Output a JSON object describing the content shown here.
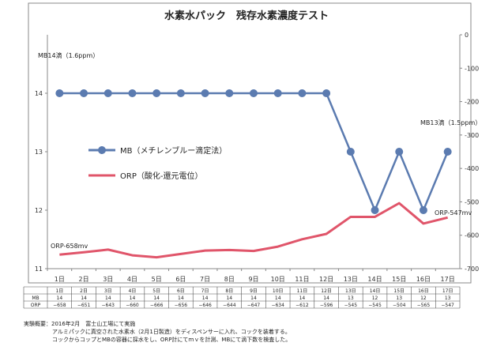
{
  "chart_data": {
    "type": "line",
    "title": "水素水パック　残存水素濃度テスト",
    "categories": [
      "1日",
      "2日",
      "3日",
      "4日",
      "5日",
      "6日",
      "7日",
      "8日",
      "9日",
      "10日",
      "11日",
      "12日",
      "13日",
      "14日",
      "15日",
      "16日",
      "17日"
    ],
    "series": [
      {
        "name": "MB（メチレンブルー滴定法）",
        "axis": "left",
        "color": "#5b7bb0",
        "values": [
          14,
          14,
          14,
          14,
          14,
          14,
          14,
          14,
          14,
          14,
          14,
          14,
          13,
          12,
          13,
          12,
          13
        ]
      },
      {
        "name": "ORP（酸化-還元電位）",
        "axis": "right",
        "color": "#e0556a",
        "values": [
          -658,
          -651,
          -643,
          -660,
          -666,
          -656,
          -646,
          -644,
          -647,
          -634,
          -612,
          -596,
          -545,
          -545,
          -504,
          -565,
          -547
        ]
      }
    ],
    "y_left": {
      "min": 11,
      "max": 15,
      "ticks": [
        11,
        12,
        13,
        14
      ]
    },
    "y_right": {
      "min": -700,
      "max": 0,
      "ticks": [
        "0",
        "-100",
        "-200",
        "-300",
        "-400",
        "-500",
        "-600",
        "-700"
      ]
    },
    "grid": false,
    "legend": "center-left",
    "annotations": [
      "MB14滴（1.6ppm）",
      "MB13滴（1.5ppm）",
      "ORP-658mv",
      "ORP-547mv"
    ]
  },
  "table": {
    "row_labels": [
      "MB",
      "ORP"
    ],
    "orp_cells": [
      "−658",
      "−651",
      "−643",
      "−660",
      "−666",
      "−656",
      "−646",
      "−644",
      "−647",
      "−634",
      "−612",
      "−596",
      "−545",
      "−545",
      "−504",
      "−565",
      "−547"
    ]
  },
  "notes": [
    "実験概要：2016年2月　富士山工場にて実施",
    "アルミパックに真空された水素水（2月1日製造）をディスペンサーに入れ、コックを装着する。",
    "コックからコップとMBの容器に採水をし、ORP計にてｍｖを計測、MBにて滴下数を検査した。"
  ]
}
